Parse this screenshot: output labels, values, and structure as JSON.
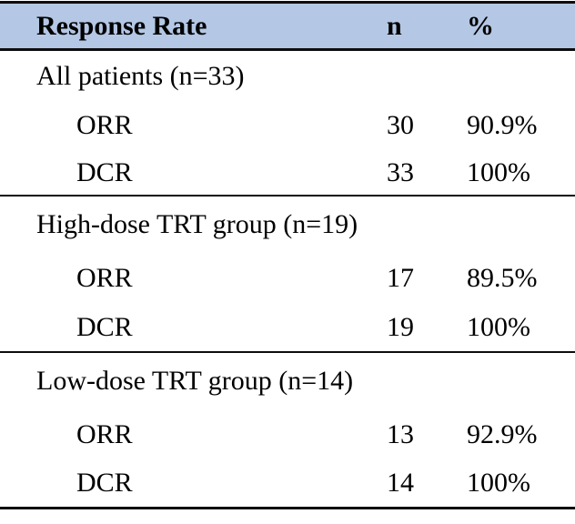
{
  "table": {
    "style": {
      "header_bg": "#b4c7e4",
      "rule_color": "#0d0d0d",
      "text_color": "#000000"
    },
    "header": {
      "response_rate": "Response Rate",
      "n": "n",
      "percent": "%"
    },
    "sections": [
      {
        "label": "All patients (n=33)",
        "rows": [
          {
            "name": "ORR",
            "n": "30",
            "percent": "90.9%"
          },
          {
            "name": "DCR",
            "n": "33",
            "percent": "100%"
          }
        ]
      },
      {
        "label": "High-dose TRT group (n=19)",
        "rows": [
          {
            "name": "ORR",
            "n": "17",
            "percent": "89.5%"
          },
          {
            "name": "DCR",
            "n": "19",
            "percent": "100%"
          }
        ]
      },
      {
        "label": "Low-dose TRT group (n=14)",
        "rows": [
          {
            "name": "ORR",
            "n": "13",
            "percent": "92.9%"
          },
          {
            "name": "DCR",
            "n": "14",
            "percent": "100%"
          }
        ]
      }
    ]
  }
}
